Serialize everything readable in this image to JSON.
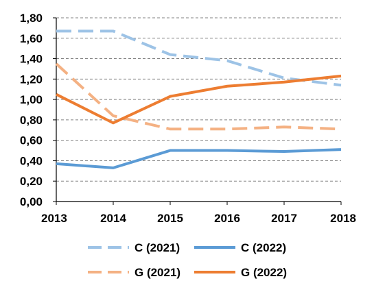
{
  "chart_data": {
    "type": "line",
    "title": "",
    "xlabel": "",
    "ylabel": "",
    "x": [
      "2013",
      "2014",
      "2015",
      "2016",
      "2017",
      "2018"
    ],
    "ylim": [
      0,
      1.8
    ],
    "y_ticks": [
      "0,00",
      "0,20",
      "0,40",
      "0,60",
      "0,80",
      "1,00",
      "1,20",
      "1,40",
      "1,60",
      "1,80"
    ],
    "grid": true,
    "legend_placement": "bottom",
    "series": [
      {
        "name": "C (2021)",
        "color": "#9DC3E6",
        "dash": true,
        "values": [
          1.67,
          1.67,
          1.44,
          1.38,
          1.21,
          1.14
        ]
      },
      {
        "name": "C (2022)",
        "color": "#5B9BD5",
        "dash": false,
        "values": [
          0.37,
          0.33,
          0.5,
          0.5,
          0.49,
          0.51
        ]
      },
      {
        "name": "G (2021)",
        "color": "#F4B183",
        "dash": true,
        "values": [
          1.35,
          0.84,
          0.71,
          0.71,
          0.73,
          0.71
        ]
      },
      {
        "name": "G (2022)",
        "color": "#ED7D31",
        "dash": false,
        "values": [
          1.05,
          0.77,
          1.03,
          1.13,
          1.17,
          1.23
        ]
      }
    ]
  }
}
